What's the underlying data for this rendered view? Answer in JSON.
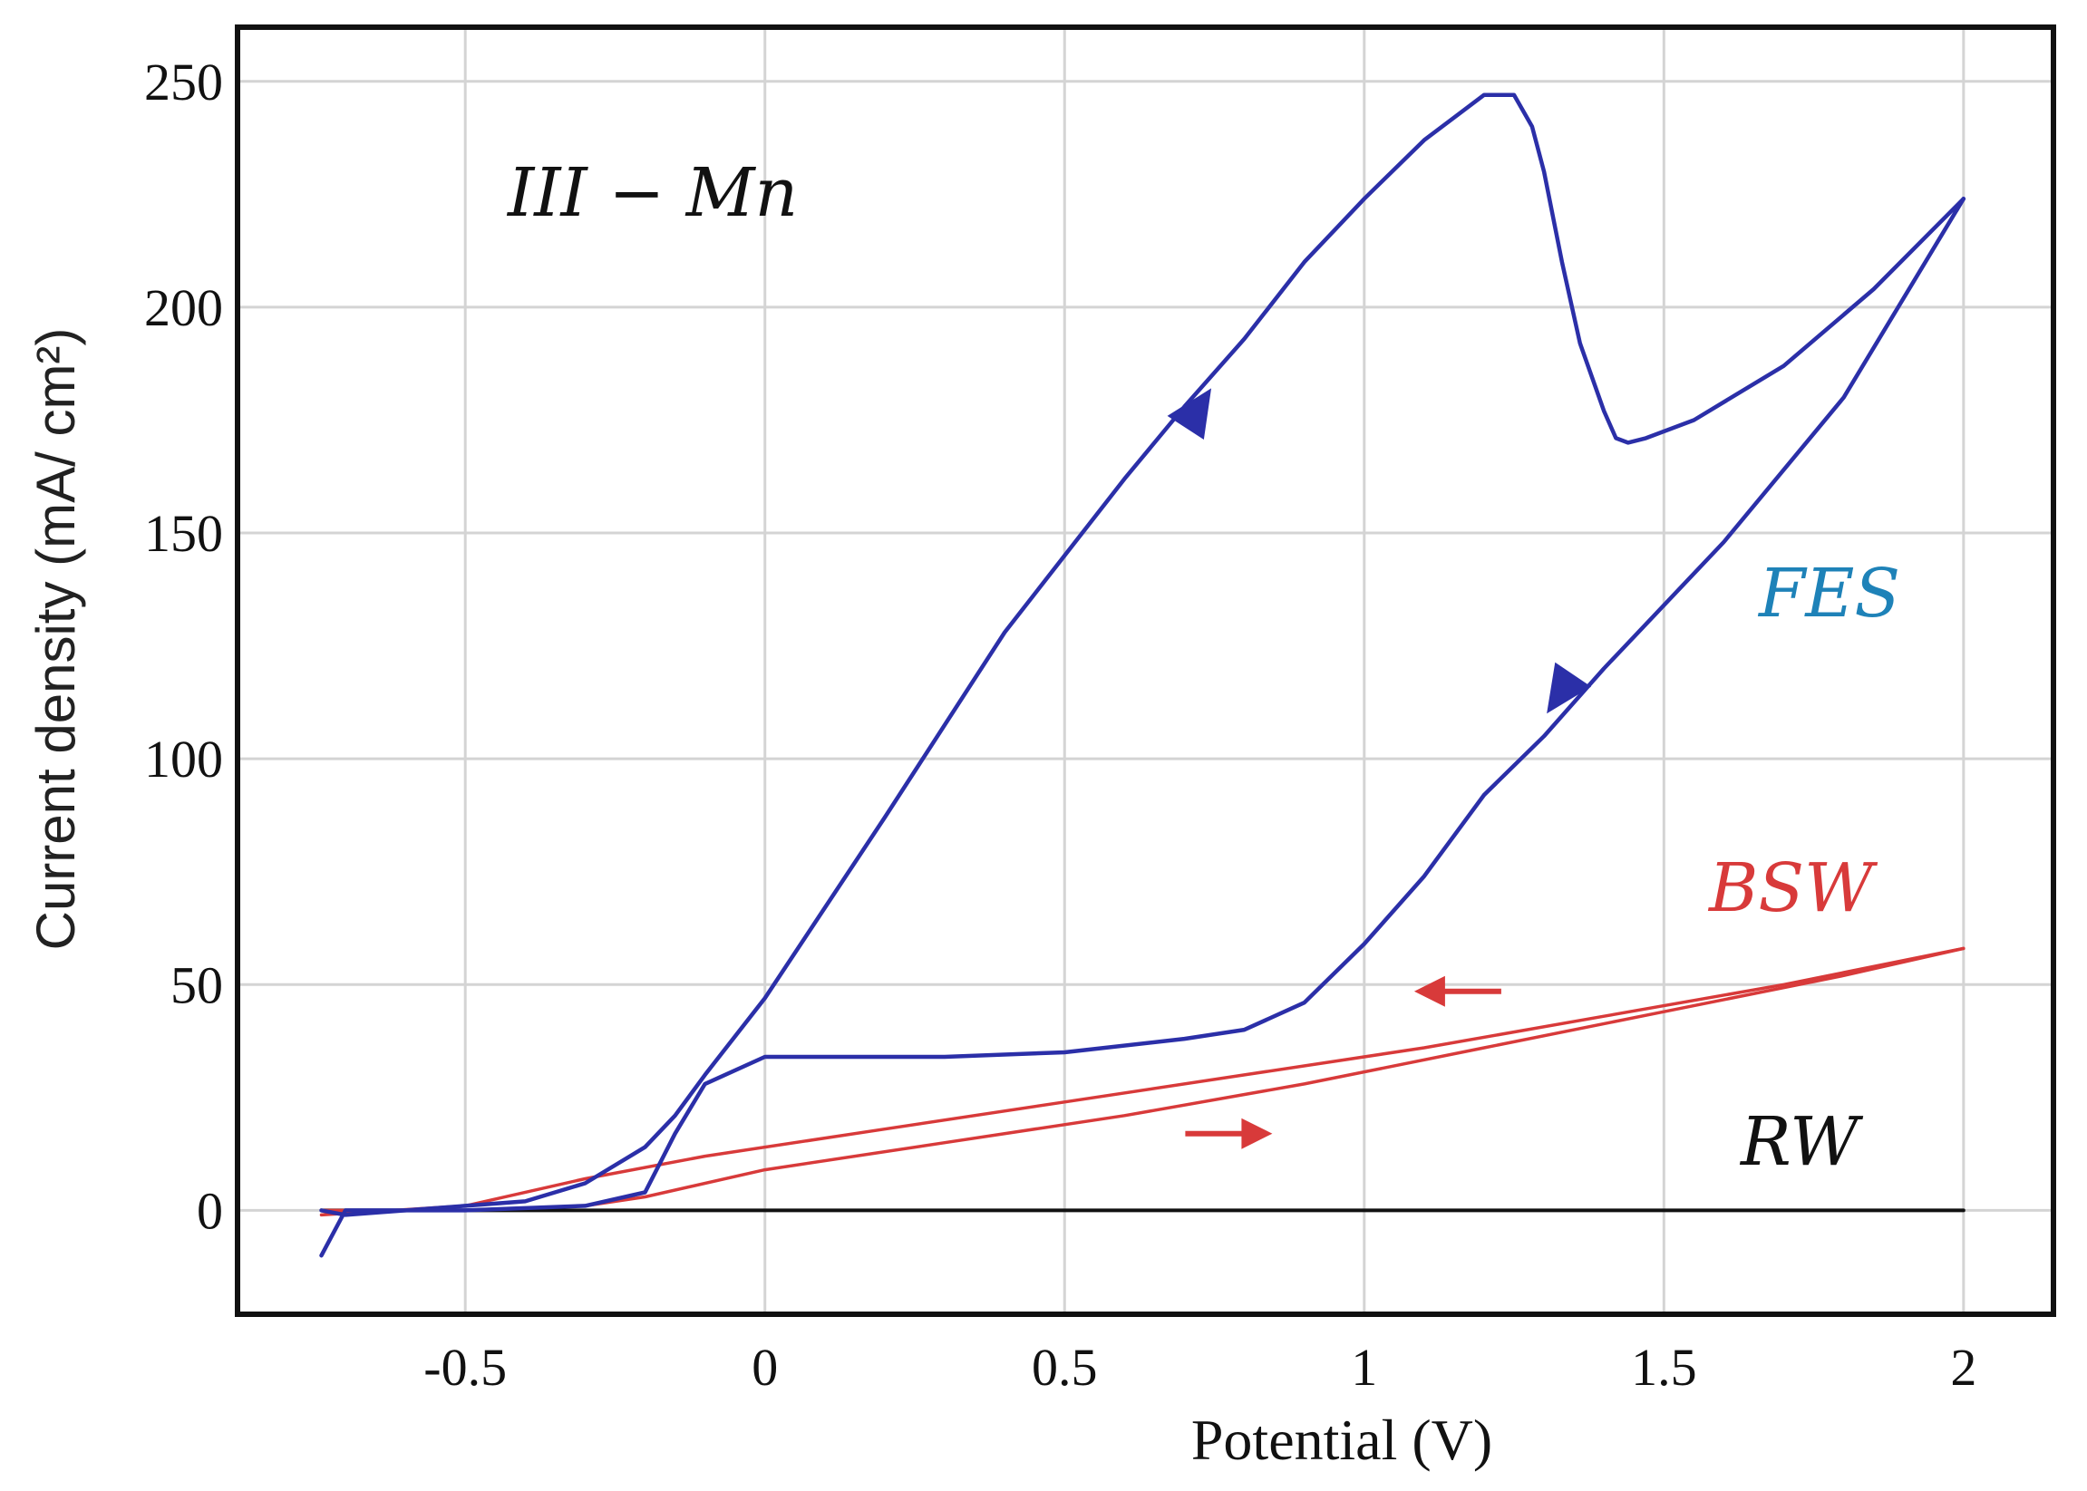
{
  "chart_data": {
    "type": "line",
    "title": "",
    "xlabel": "Potential (V)",
    "ylabel": "Current density (mA/ cm²)",
    "xlim": [
      -0.88,
      2.15
    ],
    "ylim": [
      -23,
      262
    ],
    "x_ticks": [
      -0.5,
      0,
      0.5,
      1,
      1.5,
      2
    ],
    "x_tick_labels": [
      "-0.5",
      "0",
      "0.5",
      "1",
      "1.5",
      "2"
    ],
    "y_ticks": [
      0,
      50,
      100,
      150,
      200,
      250
    ],
    "y_tick_labels": [
      "0",
      "50",
      "100",
      "150",
      "200",
      "250"
    ],
    "grid": true,
    "annotations": {
      "sample": "III − Mn",
      "fes": "FES",
      "bsw": "BSW",
      "rw": "RW"
    },
    "colors": {
      "FES": "#2b2fa8",
      "FES_label": "#1e82b8",
      "BSW": "#d83a3a",
      "RW": "#111111",
      "grid": "#d4d4d4"
    },
    "series": [
      {
        "name": "FES",
        "segments": [
          {
            "label": "forward",
            "x": [
              -0.74,
              -0.7,
              -0.6,
              -0.5,
              -0.4,
              -0.3,
              -0.2,
              -0.15,
              -0.1,
              0.0,
              0.2,
              0.4,
              0.6,
              0.7,
              0.8,
              0.9,
              1.0,
              1.1,
              1.2,
              1.25,
              1.28,
              1.3,
              1.33,
              1.36,
              1.4,
              1.42,
              1.44,
              1.47,
              1.55,
              1.7,
              1.85,
              2.0
            ],
            "y": [
              0,
              -1,
              0,
              1,
              2,
              6,
              14,
              21,
              30,
              47,
              87,
              128,
              162,
              178,
              193,
              210,
              224,
              237,
              247,
              247,
              240,
              230,
              210,
              192,
              177,
              171,
              170,
              171,
              175,
              187,
              204,
              224
            ]
          },
          {
            "label": "reverse",
            "x": [
              2.0,
              1.8,
              1.6,
              1.4,
              1.3,
              1.2,
              1.1,
              1.0,
              0.9,
              0.8,
              0.7,
              0.5,
              0.3,
              0.1,
              0.0,
              -0.1,
              -0.15,
              -0.2,
              -0.3,
              -0.5,
              -0.7,
              -0.74
            ],
            "y": [
              224,
              180,
              148,
              120,
              105,
              92,
              74,
              59,
              46,
              40,
              38,
              35,
              34,
              34,
              34,
              28,
              17,
              4,
              1,
              0,
              0,
              -10
            ]
          }
        ]
      },
      {
        "name": "BSW",
        "segments": [
          {
            "label": "upper",
            "x": [
              -0.74,
              -0.5,
              -0.3,
              -0.1,
              0.2,
              0.5,
              0.8,
              1.1,
              1.4,
              1.7,
              2.0
            ],
            "y": [
              -1,
              1,
              7,
              12,
              18,
              24,
              30,
              36,
              43,
              50,
              58
            ]
          },
          {
            "label": "lower",
            "x": [
              -0.74,
              -0.5,
              -0.3,
              -0.2,
              0.0,
              0.3,
              0.6,
              0.9,
              1.2,
              1.5,
              1.8,
              2.0
            ],
            "y": [
              0,
              0,
              1,
              3,
              9,
              15,
              21,
              28,
              36,
              44,
              52,
              58
            ]
          }
        ]
      },
      {
        "name": "RW",
        "segments": [
          {
            "label": "baseline",
            "x": [
              -0.74,
              2.0
            ],
            "y": [
              0,
              0
            ]
          }
        ]
      }
    ],
    "direction_arrows": [
      {
        "series": "FES",
        "x": 0.72,
        "y": 177,
        "direction": "up-right"
      },
      {
        "series": "FES",
        "x": 1.33,
        "y": 115,
        "direction": "down-left"
      },
      {
        "series": "BSW",
        "x": 1.15,
        "y": 48.5,
        "direction": "left"
      },
      {
        "series": "BSW",
        "x": 0.78,
        "y": 17,
        "direction": "right"
      }
    ]
  }
}
